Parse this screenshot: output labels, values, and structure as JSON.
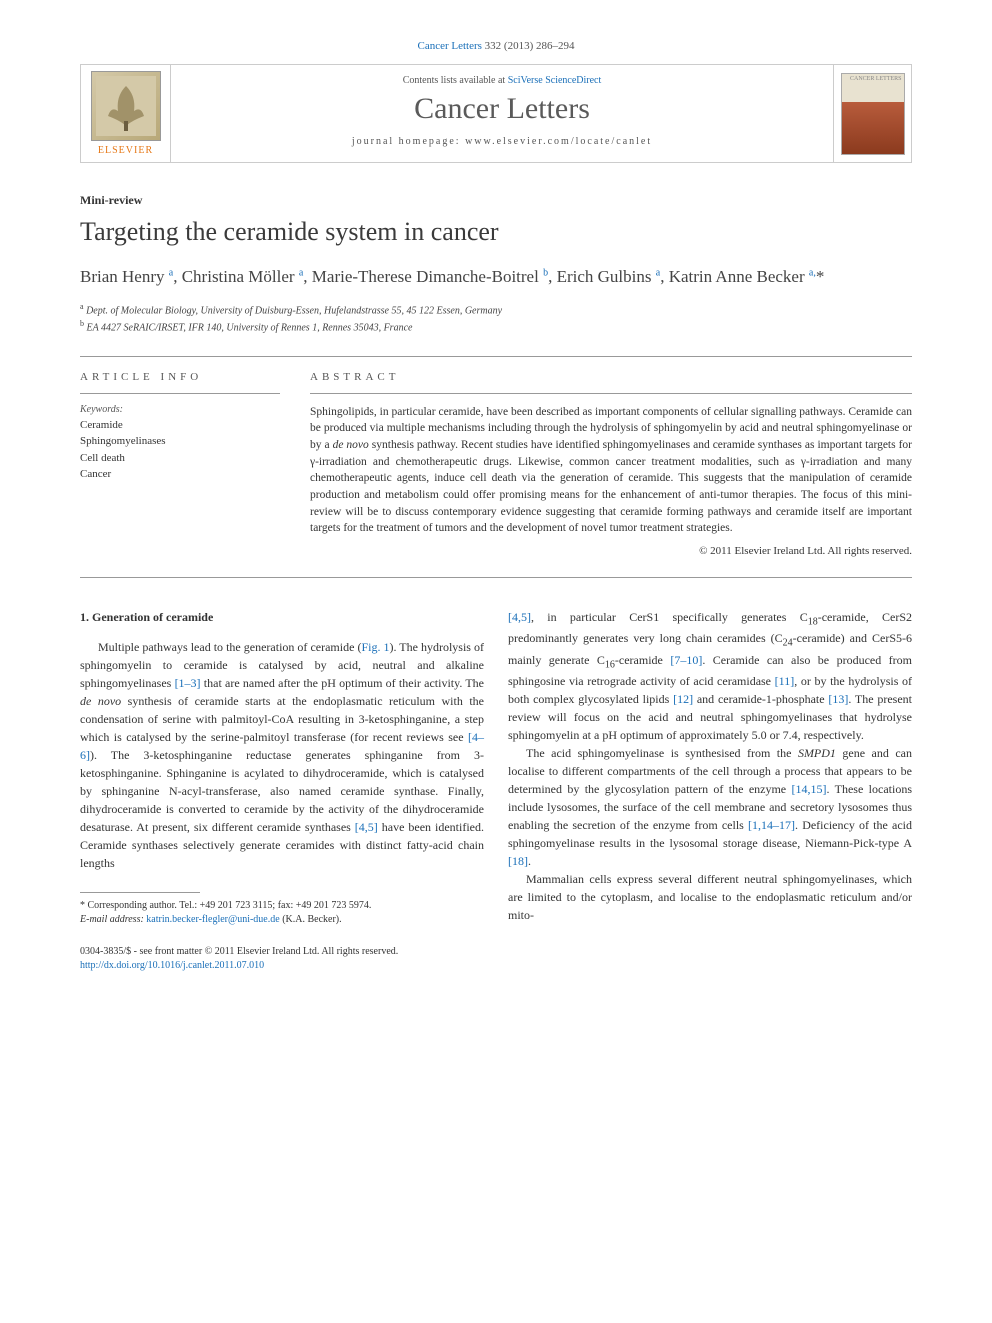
{
  "citation": {
    "prefix": "Cancer Letters",
    "vol_pages": "332 (2013) 286–294"
  },
  "journal_box": {
    "contents_line_prefix": "Contents lists available at ",
    "contents_link": "SciVerse ScienceDirect",
    "journal_name": "Cancer Letters",
    "homepage_prefix": "journal homepage: ",
    "homepage_url": "www.elsevier.com/locate/canlet",
    "publisher_label": "ELSEVIER",
    "cover_label": "CANCER LETTERS"
  },
  "article": {
    "type": "Mini-review",
    "title": "Targeting the ceramide system in cancer",
    "authors_html": "Brian Henry <sup>a</sup>, Christina Möller <sup>a</sup>, Marie-Therese Dimanche-Boitrel <sup>b</sup>, Erich Gulbins <sup>a</sup>, Katrin Anne Becker <sup>a,</sup><span class='corr-star'>*</span>",
    "affiliations": {
      "a": "Dept. of Molecular Biology, University of Duisburg-Essen, Hufelandstrasse 55, 45 122 Essen, Germany",
      "b": "EA 4427 SeRAIC/IRSET, IFR 140, University of Rennes 1, Rennes 35043, France"
    }
  },
  "info": {
    "section_label": "ARTICLE INFO",
    "keywords_label": "Keywords:",
    "keywords": [
      "Ceramide",
      "Sphingomyelinases",
      "Cell death",
      "Cancer"
    ]
  },
  "abstract": {
    "section_label": "ABSTRACT",
    "text_html": "Sphingolipids, in particular ceramide, have been described as important components of cellular signalling pathways. Ceramide can be produced via multiple mechanisms including through the hydrolysis of sphingomyelin by acid and neutral sphingomyelinase or by a <em>de novo</em> synthesis pathway. Recent studies have identified sphingomyelinases and ceramide synthases as important targets for γ-irradiation and chemotherapeutic drugs. Likewise, common cancer treatment modalities, such as γ-irradiation and many chemotherapeutic agents, induce cell death via the generation of ceramide. This suggests that the manipulation of ceramide production and metabolism could offer promising means for the enhancement of anti-tumor therapies. The focus of this mini-review will be to discuss contemporary evidence suggesting that ceramide forming pathways and ceramide itself are important targets for the treatment of tumors and the development of novel tumor treatment strategies.",
    "copyright": "© 2011 Elsevier Ireland Ltd. All rights reserved."
  },
  "body": {
    "section_number": "1.",
    "section_title": "Generation of ceramide",
    "left_html": "Multiple pathways lead to the generation of ceramide (<a href='#'>Fig. 1</a>). The hydrolysis of sphingomyelin to ceramide is catalysed by acid, neutral and alkaline sphingomyelinases <a href='#'>[1–3]</a> that are named after the pH optimum of their activity. The <em>de novo</em> synthesis of ceramide starts at the endoplasmatic reticulum with the condensation of serine with palmitoyl-CoA resulting in 3-ketosphinganine, a step which is catalysed by the serine-palmitoyl transferase (for recent reviews see <a href='#'>[4–6]</a>). The 3-ketosphinganine reductase generates sphinganine from 3-ketosphinganine. Sphinganine is acylated to dihydroceramide, which is catalysed by sphinganine N-acyl-transferase, also named ceramide synthase. Finally, dihydroceramide is converted to ceramide by the activity of the dihydroceramide desaturase. At present, six different ceramide synthases <a href='#'>[4,5]</a> have been identified. Ceramide synthases selectively generate ceramides with distinct fatty-acid chain lengths",
    "right_html": "<a href='#'>[4,5]</a>, in particular CerS1 specifically generates C<sub>18</sub>-ceramide, CerS2 predominantly generates very long chain ceramides (C<sub>24</sub>-ceramide) and CerS5-6 mainly generate C<sub>16</sub>-ceramide <a href='#'>[7–10]</a>. Ceramide can also be produced from sphingosine via retrograde activity of acid ceramidase <a href='#'>[11]</a>, or by the hydrolysis of both complex glycosylated lipids <a href='#'>[12]</a> and ceramide-1-phosphate <a href='#'>[13]</a>. The present review will focus on the acid and neutral sphingomyelinases that hydrolyse sphingomyelin at a pH optimum of approximately 5.0 or 7.4, respectively.",
    "right_p2_html": "The acid sphingomyelinase is synthesised from the <em>SMPD1</em> gene and can localise to different compartments of the cell through a process that appears to be determined by the glycosylation pattern of the enzyme <a href='#'>[14,15]</a>. These locations include lysosomes, the surface of the cell membrane and secretory lysosomes thus enabling the secretion of the enzyme from cells <a href='#'>[1,14–17]</a>. Deficiency of the acid sphingomyelinase results in the lysosomal storage disease, Niemann-Pick-type A <a href='#'>[18]</a>.",
    "right_p3_html": "Mammalian cells express several different neutral sphingomyelinases, which are limited to the cytoplasm, and localise to the endoplasmatic reticulum and/or mito-"
  },
  "footnote": {
    "corr_label": "* Corresponding author. Tel.: +49 201 723 3115; fax: +49 201 723 5974.",
    "email_label": "E-mail address:",
    "email": "katrin.becker-flegler@uni-due.de",
    "email_suffix": "(K.A. Becker)."
  },
  "footer": {
    "issn_line": "0304-3835/$ - see front matter © 2011 Elsevier Ireland Ltd. All rights reserved.",
    "doi": "http://dx.doi.org/10.1016/j.canlet.2011.07.010"
  },
  "colors": {
    "link": "#1a6fb8",
    "elsevier_orange": "#e67817",
    "text": "#333333",
    "border": "#999999"
  }
}
